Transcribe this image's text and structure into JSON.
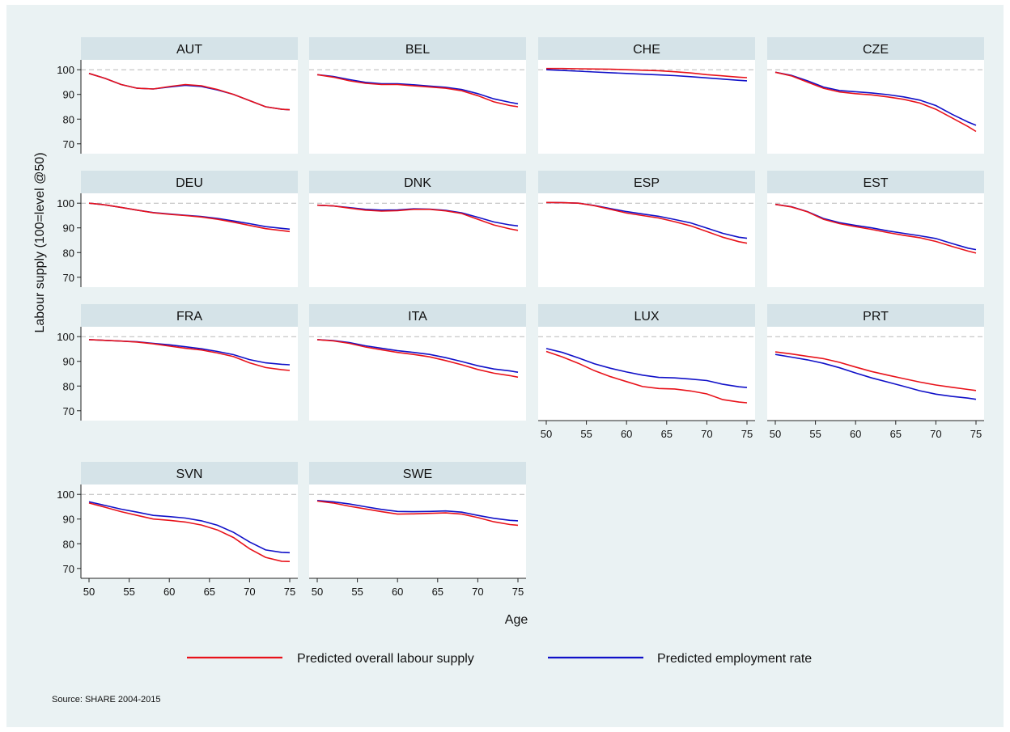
{
  "chart_data": {
    "type": "line",
    "facet_layout": "4 columns x 4 rows",
    "x": [
      50,
      52,
      54,
      56,
      58,
      60,
      62,
      64,
      66,
      68,
      70,
      72,
      74,
      75
    ],
    "xlabel": "Age",
    "ylabel": "Labour supply (100=level @50)",
    "xlim": [
      50,
      75
    ],
    "ylim": [
      66,
      104
    ],
    "xticks": [
      50,
      55,
      60,
      65,
      70,
      75
    ],
    "yticks": [
      70,
      80,
      90,
      100
    ],
    "reference_line": 100,
    "series_names": [
      "Predicted overall labour supply",
      "Predicted employment rate"
    ],
    "series_colors": [
      "#e8121a",
      "#1010c8"
    ],
    "legend_position": "bottom",
    "source_note": "Source: SHARE 2004-2015",
    "panels": [
      {
        "title": "AUT",
        "supply": [
          98.5,
          96.5,
          94,
          92.5,
          92.2,
          93.2,
          94,
          93.5,
          92,
          90,
          87.5,
          85,
          84,
          83.8
        ],
        "employment": [
          98.5,
          96.5,
          94,
          92.5,
          92.2,
          93,
          93.7,
          93.2,
          91.8,
          90,
          87.5,
          85,
          84,
          83.8
        ]
      },
      {
        "title": "BEL",
        "supply": [
          98,
          97,
          95.5,
          94.5,
          94,
          94,
          93.5,
          93,
          92.5,
          91.5,
          89.5,
          87,
          85.5,
          85
        ]
      },
      {
        "title": "CHE",
        "supply": [
          100.5,
          100.5,
          100.4,
          100.3,
          100.2,
          100,
          99.8,
          99.6,
          99.2,
          98.7,
          98,
          97.5,
          97,
          96.8
        ],
        "employment": [
          100,
          99.7,
          99.4,
          99.1,
          98.8,
          98.5,
          98.2,
          97.9,
          97.6,
          97.2,
          96.7,
          96.2,
          95.7,
          95.5
        ]
      },
      {
        "title": "CZE",
        "supply": [
          99,
          97.5,
          95,
          92.5,
          91,
          90.3,
          89.8,
          89,
          88,
          86.5,
          84,
          80.5,
          77,
          75
        ],
        "employment": [
          99,
          97.7,
          95.5,
          93,
          91.6,
          91.1,
          90.6,
          89.9,
          89,
          87.7,
          85.5,
          82,
          78.8,
          77.5
        ]
      },
      {
        "title": "DEU",
        "supply": [
          100,
          99.3,
          98.3,
          97.2,
          96.1,
          95.5,
          95,
          94.4,
          93.5,
          92.3,
          91,
          89.7,
          88.9,
          88.5
        ],
        "employment": [
          100,
          99.3,
          98.3,
          97.2,
          96.2,
          95.6,
          95.1,
          94.6,
          93.8,
          92.8,
          91.7,
          90.5,
          89.8,
          89.5
        ]
      },
      {
        "title": "DNK",
        "supply": [
          99.2,
          98.9,
          98,
          97.2,
          96.8,
          97,
          97.5,
          97.5,
          96.9,
          95.8,
          93.5,
          91.2,
          89.6,
          89
        ],
        "employment": [
          99.2,
          98.9,
          98.2,
          97.5,
          97.2,
          97.3,
          97.7,
          97.6,
          97.1,
          96.1,
          94.3,
          92.4,
          91.2,
          90.8
        ]
      },
      {
        "title": "ESP",
        "supply": [
          100.3,
          100.2,
          100,
          99,
          97.5,
          96,
          95,
          94,
          92.5,
          90.8,
          88.5,
          86.2,
          84.4,
          83.8
        ],
        "employment": [
          100.3,
          100.2,
          100,
          99.1,
          97.8,
          96.6,
          95.6,
          94.7,
          93.4,
          92,
          89.9,
          87.8,
          86.2,
          85.8
        ]
      },
      {
        "title": "EST",
        "supply": [
          99.5,
          98.5,
          96.5,
          93.5,
          91.7,
          90.5,
          89.4,
          88.1,
          87,
          86,
          84.5,
          82.5,
          80.6,
          79.8
        ],
        "employment": [
          99.5,
          98.6,
          96.6,
          93.8,
          92.1,
          91,
          90,
          88.8,
          87.8,
          86.8,
          85.7,
          83.7,
          81.8,
          81.2
        ]
      },
      {
        "title": "FRA",
        "supply": [
          98.8,
          98.5,
          98.2,
          97.8,
          97.1,
          96.2,
          95.3,
          94.6,
          93.4,
          91.9,
          89.4,
          87.5,
          86.6,
          86.3
        ],
        "employment": [
          98.8,
          98.5,
          98.2,
          97.9,
          97.3,
          96.7,
          95.9,
          95.1,
          94,
          92.7,
          90.7,
          89.4,
          88.8,
          88.6
        ]
      },
      {
        "title": "ITA",
        "supply": [
          98.8,
          98.3,
          97.3,
          95.8,
          94.7,
          93.6,
          92.8,
          91.8,
          90.3,
          88.6,
          86.7,
          85.2,
          84.2,
          83.6
        ],
        "employment": [
          98.8,
          98.4,
          97.6,
          96.3,
          95.3,
          94.3,
          93.6,
          92.8,
          91.5,
          89.9,
          88.2,
          86.9,
          86.1,
          85.6
        ]
      },
      {
        "title": "LUX",
        "supply": [
          94,
          91.8,
          89.2,
          86.2,
          83.8,
          81.8,
          79.8,
          79,
          78.8,
          78,
          76.8,
          74.5,
          73.5,
          73.2
        ],
        "employment": [
          95.2,
          93.6,
          91.4,
          89,
          87.2,
          85.7,
          84.4,
          83.5,
          83.3,
          82.8,
          82.2,
          80.7,
          79.7,
          79.4
        ]
      },
      {
        "title": "PRT",
        "supply": [
          93.8,
          93,
          92,
          91.1,
          89.6,
          87.7,
          85.9,
          84.4,
          83,
          81.6,
          80.4,
          79.5,
          78.6,
          78.2
        ],
        "employment": [
          92.8,
          91.7,
          90.6,
          89.2,
          87.4,
          85.3,
          83.3,
          81.6,
          79.9,
          78.1,
          76.7,
          75.8,
          75.1,
          74.6
        ]
      },
      {
        "title": "SVN",
        "supply": [
          96.5,
          94.8,
          93,
          91.5,
          90,
          89.5,
          88.8,
          87.6,
          85.6,
          82.5,
          78,
          74.5,
          72.9,
          72.8
        ],
        "employment": [
          97,
          95.5,
          94,
          92.8,
          91.5,
          91,
          90.4,
          89.3,
          87.5,
          84.6,
          80.7,
          77.5,
          76.5,
          76.4
        ]
      },
      {
        "title": "SWE",
        "supply": [
          97.3,
          96.5,
          95.2,
          94.1,
          93,
          92,
          92.1,
          92.3,
          92.5,
          92,
          90.6,
          88.9,
          87.8,
          87.5
        ],
        "employment": [
          97.5,
          97,
          96.1,
          95,
          93.9,
          93.1,
          93,
          93.1,
          93.3,
          92.8,
          91.5,
          90.3,
          89.5,
          89.3
        ]
      }
    ]
  }
}
